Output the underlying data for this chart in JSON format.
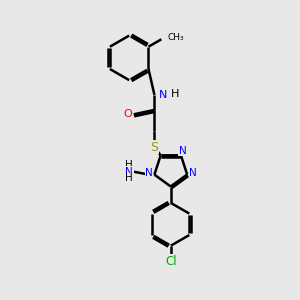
{
  "bg_color": "#e8e8e8",
  "bond_color": "#000000",
  "n_color": "#0000ff",
  "o_color": "#ff0000",
  "s_color": "#999900",
  "cl_color": "#00aa00",
  "line_width": 1.8,
  "figsize": [
    3.0,
    3.0
  ],
  "dpi": 100,
  "xlim": [
    0,
    10
  ],
  "ylim": [
    0,
    10
  ]
}
